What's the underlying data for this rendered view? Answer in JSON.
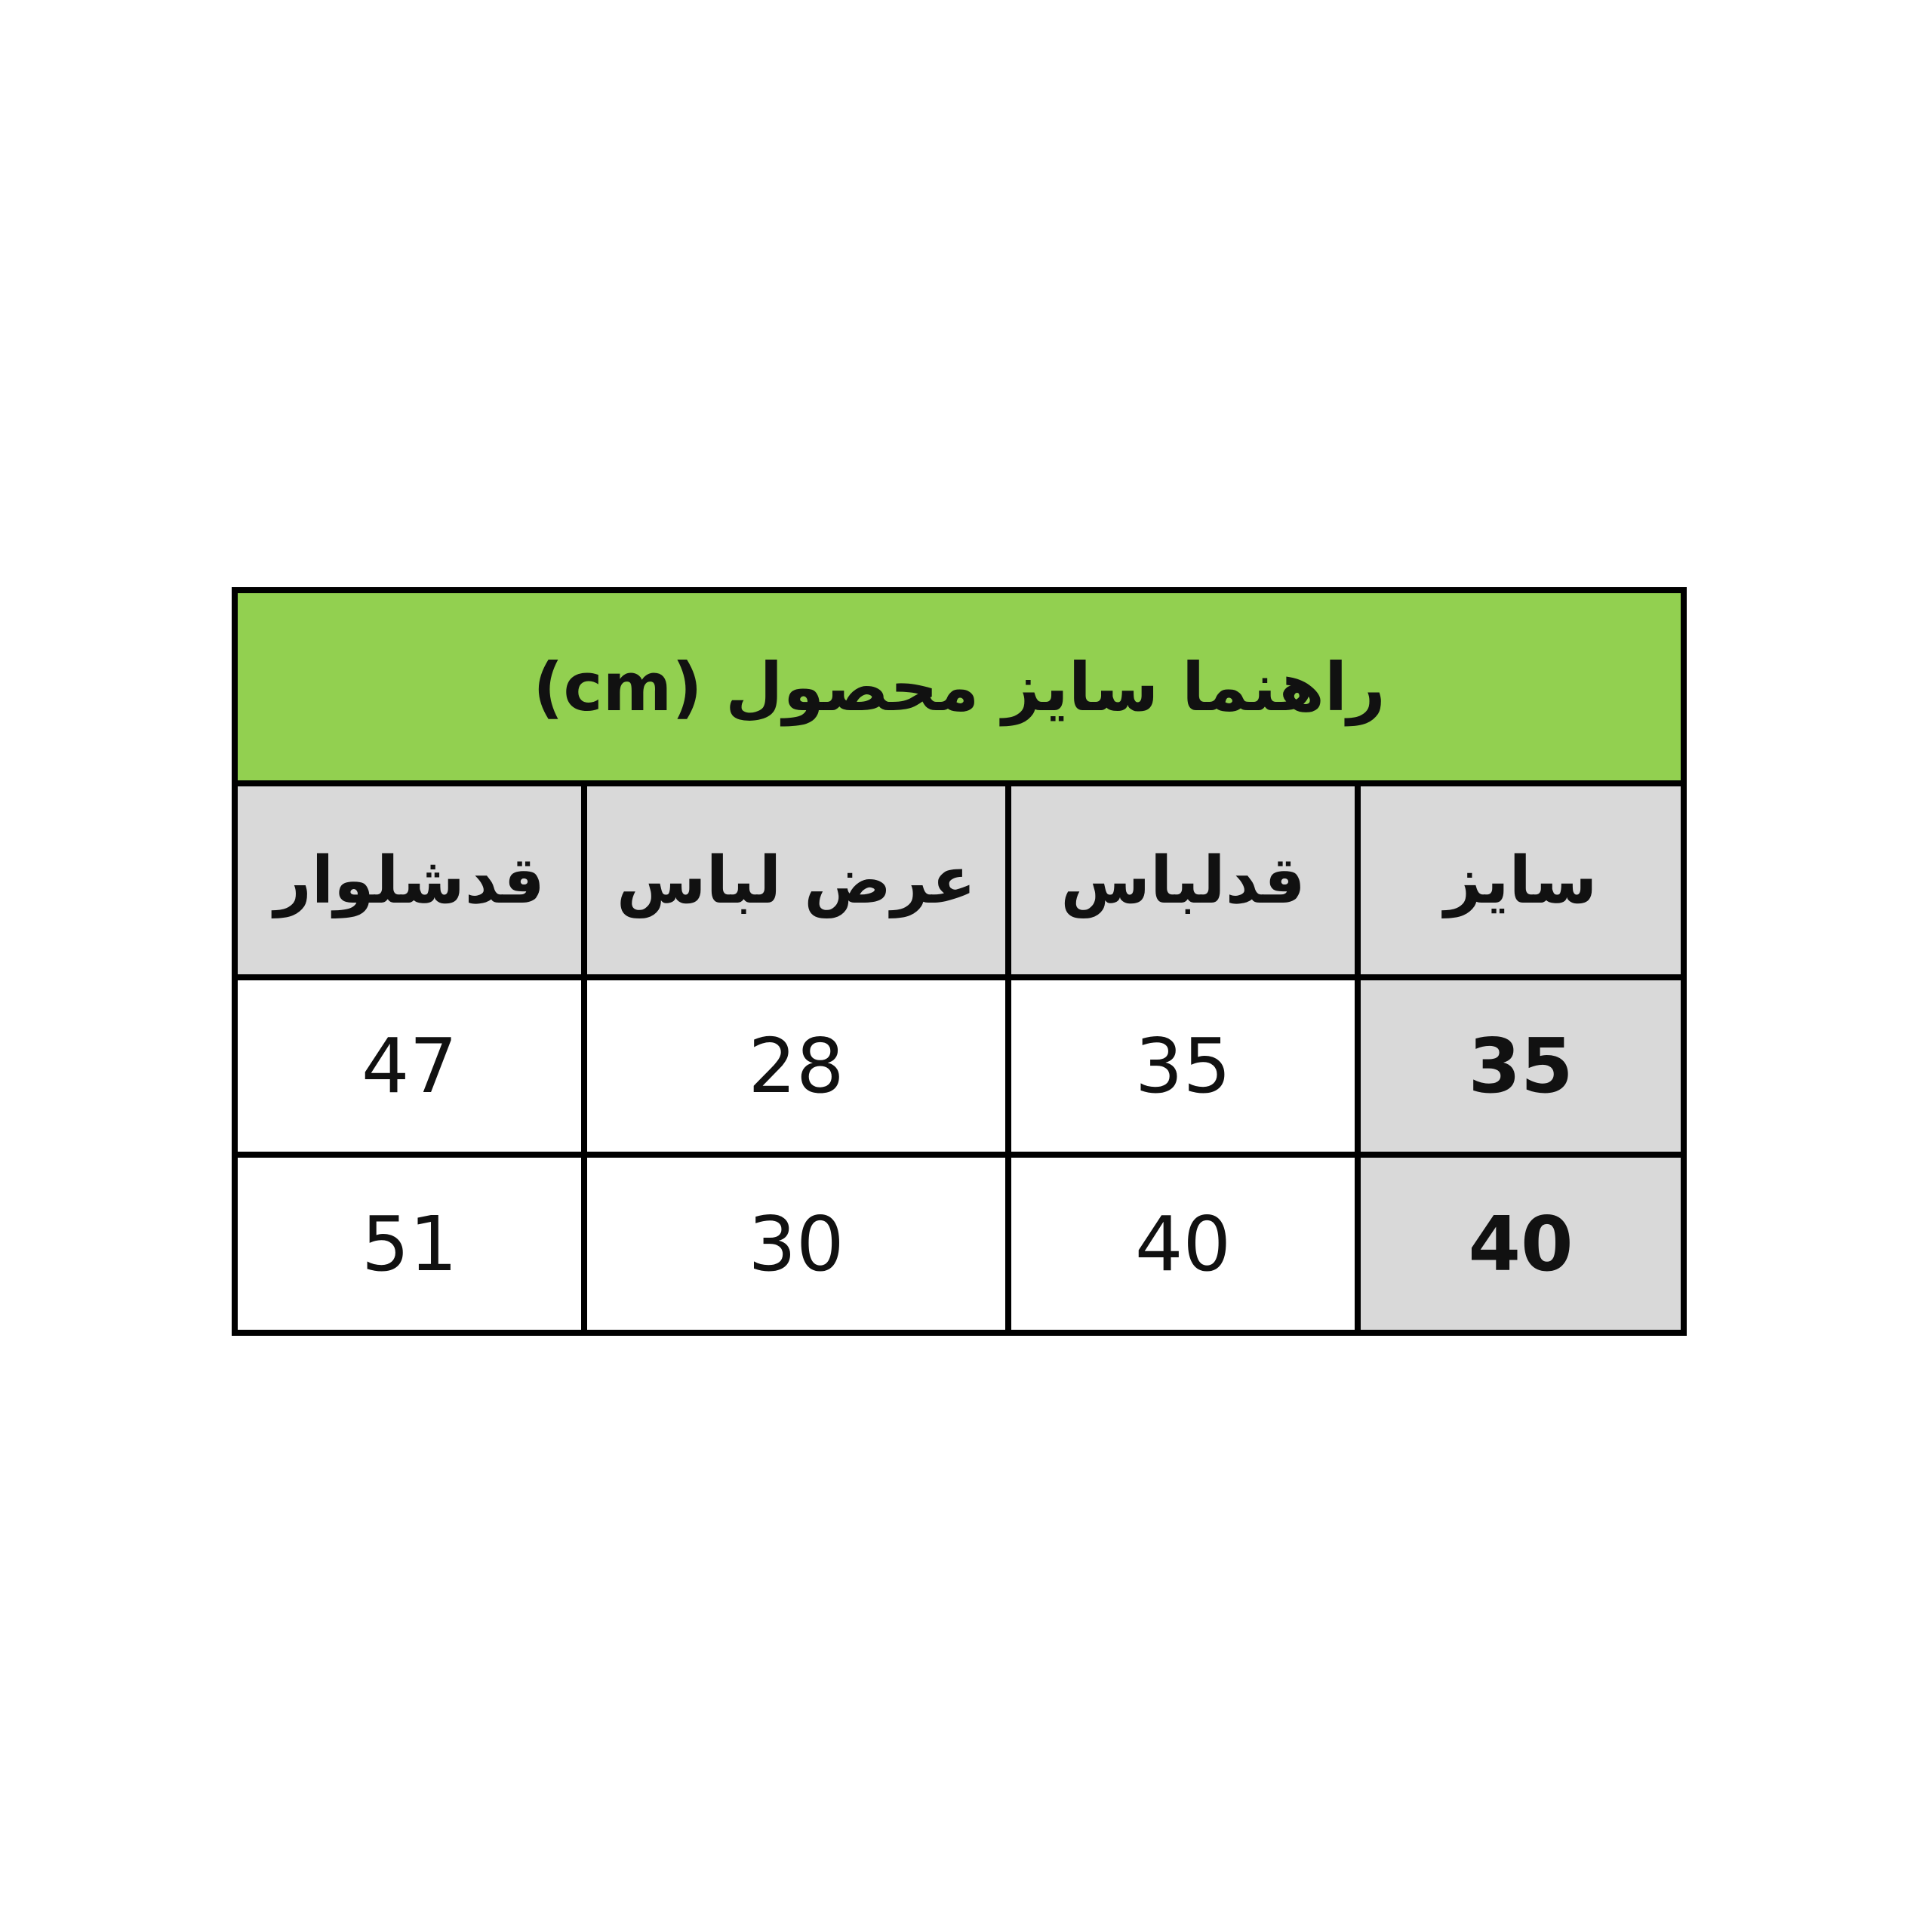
{
  "chart_data": {
    "type": "table",
    "title": "راهنما سایز محصول (cm)",
    "direction": "rtl",
    "columns": [
      "سایز",
      "قدلباس",
      "عرض لباس",
      "قدشلوار"
    ],
    "rows": [
      [
        "35",
        "35",
        "28",
        "47"
      ],
      [
        "40",
        "40",
        "30",
        "51"
      ]
    ],
    "column_meanings": [
      "size",
      "garment-length",
      "garment-width",
      "pants-length"
    ],
    "layout_hints": {
      "title_row_bg": "green",
      "header_row_bg": "gray",
      "size_column_bg": "gray",
      "size_column_bold": true,
      "grid_on": true
    }
  },
  "colors": {
    "title_green": "#92D050",
    "header_gray": "#D9D9D9",
    "border": "#000000",
    "cell_white": "#FFFFFF"
  }
}
